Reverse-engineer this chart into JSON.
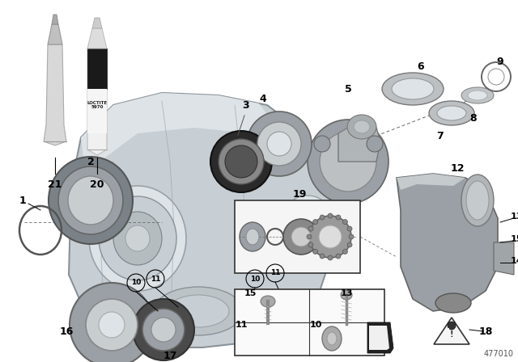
{
  "background_color": "#ffffff",
  "diagram_number": "477010",
  "figsize": [
    6.4,
    4.48
  ],
  "dpi": 100,
  "housing": {
    "body_color": "#c8cfd4",
    "shadow_color": "#a8b0b5",
    "highlight_color": "#dde3e7"
  },
  "parts": {
    "seal_dark": "#2a2a2a",
    "seal_mid": "#6a6a6a",
    "grey_part": "#9aa0a6",
    "light_grey": "#c5cacd",
    "washer_color": "#b0b5b8"
  }
}
